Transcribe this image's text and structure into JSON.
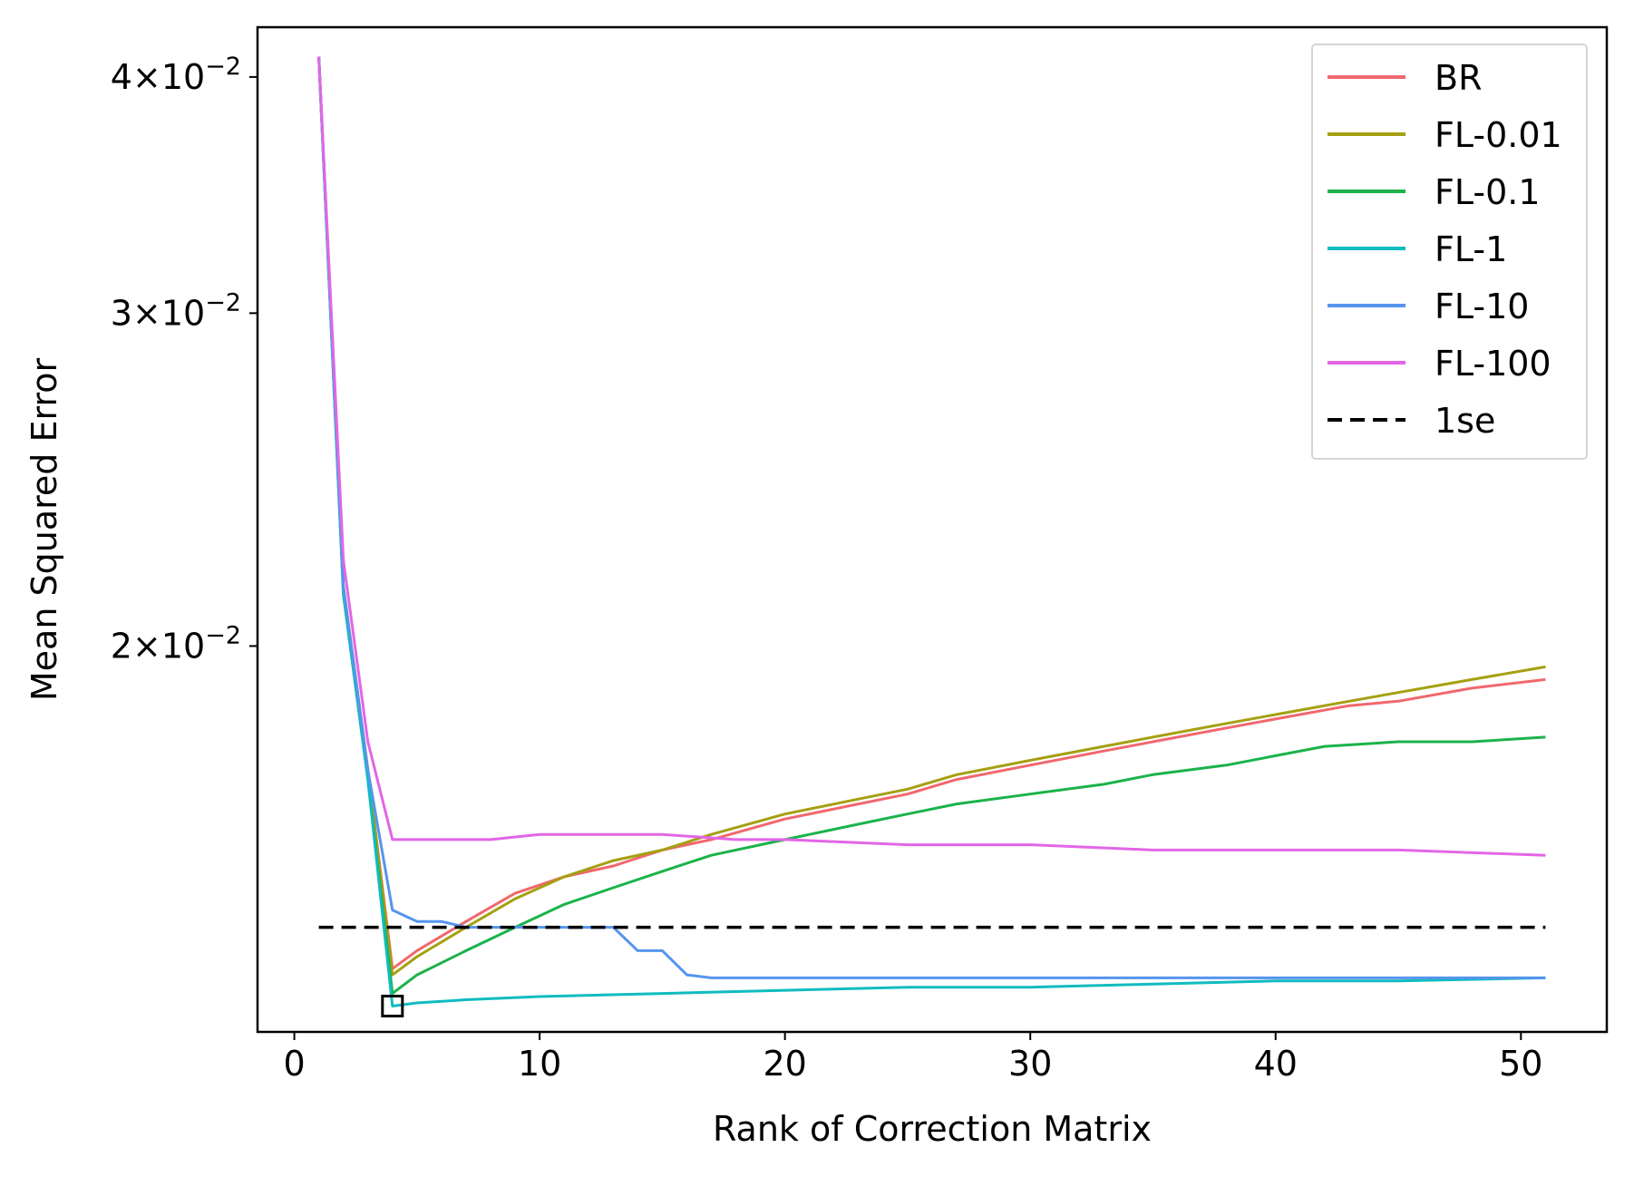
{
  "chart_data": {
    "type": "line",
    "xlabel": "Rank of Correction Matrix",
    "ylabel": "Mean Squared Error",
    "yscale": "log",
    "xlim": [
      -1.5,
      53.5
    ],
    "ylim": [
      0.0125,
      0.0425
    ],
    "xticks": [
      0,
      10,
      20,
      30,
      40,
      50
    ],
    "yticks": [
      {
        "value": 0.02,
        "mantissa": "2",
        "exponent": "−2"
      },
      {
        "value": 0.03,
        "mantissa": "3",
        "exponent": "−2"
      },
      {
        "value": 0.04,
        "mantissa": "4",
        "exponent": "−2"
      }
    ],
    "legend_position": "upper right",
    "series": [
      {
        "name": "BR",
        "color": "#f0686e",
        "points": [
          [
            1,
            0.041
          ],
          [
            2,
            0.0215
          ],
          [
            3,
            0.0172
          ],
          [
            4,
            0.0135
          ],
          [
            5,
            0.0138
          ],
          [
            7,
            0.0143
          ],
          [
            9,
            0.0148
          ],
          [
            11,
            0.0151
          ],
          [
            13,
            0.0153
          ],
          [
            15,
            0.0156
          ],
          [
            17,
            0.0158
          ],
          [
            20,
            0.0162
          ],
          [
            23,
            0.0165
          ],
          [
            25,
            0.0167
          ],
          [
            27,
            0.017
          ],
          [
            30,
            0.0173
          ],
          [
            33,
            0.0176
          ],
          [
            35,
            0.0178
          ],
          [
            38,
            0.0181
          ],
          [
            40,
            0.0183
          ],
          [
            43,
            0.0186
          ],
          [
            45,
            0.0187
          ],
          [
            48,
            0.019
          ],
          [
            51,
            0.0192
          ]
        ]
      },
      {
        "name": "FL-0.01",
        "color": "#a5a012",
        "points": [
          [
            1,
            0.041
          ],
          [
            2,
            0.0215
          ],
          [
            3,
            0.0172
          ],
          [
            4,
            0.0134
          ],
          [
            5,
            0.0137
          ],
          [
            7,
            0.0142
          ],
          [
            9,
            0.0147
          ],
          [
            11,
            0.0151
          ],
          [
            13,
            0.0154
          ],
          [
            15,
            0.0156
          ],
          [
            17,
            0.0159
          ],
          [
            20,
            0.0163
          ],
          [
            23,
            0.0166
          ],
          [
            25,
            0.0168
          ],
          [
            27,
            0.0171
          ],
          [
            30,
            0.0174
          ],
          [
            33,
            0.0177
          ],
          [
            35,
            0.0179
          ],
          [
            38,
            0.0182
          ],
          [
            40,
            0.0184
          ],
          [
            43,
            0.0187
          ],
          [
            45,
            0.0189
          ],
          [
            48,
            0.0192
          ],
          [
            51,
            0.0195
          ]
        ]
      },
      {
        "name": "FL-0.1",
        "color": "#1bb34a",
        "points": [
          [
            1,
            0.041
          ],
          [
            2,
            0.0213
          ],
          [
            3,
            0.017
          ],
          [
            4,
            0.0131
          ],
          [
            5,
            0.0134
          ],
          [
            7,
            0.0138
          ],
          [
            9,
            0.0142
          ],
          [
            11,
            0.0146
          ],
          [
            13,
            0.0149
          ],
          [
            15,
            0.0152
          ],
          [
            17,
            0.0155
          ],
          [
            20,
            0.0158
          ],
          [
            23,
            0.0161
          ],
          [
            25,
            0.0163
          ],
          [
            27,
            0.0165
          ],
          [
            30,
            0.0167
          ],
          [
            33,
            0.0169
          ],
          [
            35,
            0.0171
          ],
          [
            38,
            0.0173
          ],
          [
            40,
            0.0175
          ],
          [
            42,
            0.0177
          ],
          [
            45,
            0.0178
          ],
          [
            48,
            0.0178
          ],
          [
            51,
            0.0179
          ]
        ]
      },
      {
        "name": "FL-1",
        "color": "#10bcc0",
        "points": [
          [
            1,
            0.041
          ],
          [
            2,
            0.0213
          ],
          [
            3,
            0.017
          ],
          [
            4,
            0.0129
          ],
          [
            5,
            0.01295
          ],
          [
            7,
            0.013
          ],
          [
            10,
            0.01305
          ],
          [
            15,
            0.0131
          ],
          [
            20,
            0.01315
          ],
          [
            25,
            0.0132
          ],
          [
            30,
            0.0132
          ],
          [
            35,
            0.01325
          ],
          [
            40,
            0.0133
          ],
          [
            45,
            0.0133
          ],
          [
            51,
            0.01335
          ]
        ]
      },
      {
        "name": "FL-10",
        "color": "#5695ed",
        "points": [
          [
            1,
            0.041
          ],
          [
            2,
            0.0215
          ],
          [
            3,
            0.0172
          ],
          [
            4,
            0.0145
          ],
          [
            5,
            0.0143
          ],
          [
            6,
            0.0143
          ],
          [
            7,
            0.0142
          ],
          [
            8,
            0.0142
          ],
          [
            10,
            0.0142
          ],
          [
            12,
            0.0142
          ],
          [
            13,
            0.0142
          ],
          [
            14,
            0.0138
          ],
          [
            15,
            0.0138
          ],
          [
            16,
            0.0134
          ],
          [
            17,
            0.01335
          ],
          [
            20,
            0.01335
          ],
          [
            25,
            0.01335
          ],
          [
            30,
            0.01335
          ],
          [
            35,
            0.01335
          ],
          [
            40,
            0.01335
          ],
          [
            45,
            0.01335
          ],
          [
            51,
            0.01335
          ]
        ]
      },
      {
        "name": "FL-100",
        "color": "#e366e6",
        "points": [
          [
            1,
            0.041
          ],
          [
            2,
            0.0222
          ],
          [
            3,
            0.0178
          ],
          [
            4,
            0.0158
          ],
          [
            5,
            0.0158
          ],
          [
            8,
            0.0158
          ],
          [
            10,
            0.0159
          ],
          [
            13,
            0.0159
          ],
          [
            15,
            0.0159
          ],
          [
            18,
            0.0158
          ],
          [
            20,
            0.0158
          ],
          [
            25,
            0.0157
          ],
          [
            30,
            0.0157
          ],
          [
            35,
            0.0156
          ],
          [
            40,
            0.0156
          ],
          [
            45,
            0.0156
          ],
          [
            51,
            0.0155
          ]
        ]
      },
      {
        "name": "1se",
        "color": "#000000",
        "dashed": true,
        "points": [
          [
            1,
            0.0142
          ],
          [
            51,
            0.0142
          ]
        ]
      }
    ],
    "marker": {
      "type": "square",
      "x": 4,
      "y": 0.0129
    }
  }
}
